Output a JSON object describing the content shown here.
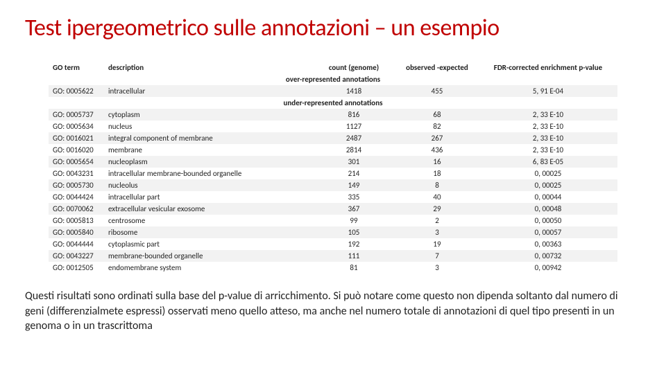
{
  "title": "Test ipergeometrico sulle annotazioni – un esempio",
  "table": {
    "headers": {
      "go_term": "GO term",
      "description": "description",
      "count": "count (genome)",
      "obs_exp": "observed -expected",
      "fdr": "FDR-corrected enrichment p-value"
    },
    "over_label": "over-represented annotations",
    "under_label": "under-represented annotations",
    "over_rows": [
      {
        "go": "GO: 0005622",
        "desc": "intracellular",
        "count": "1418",
        "oe": "455",
        "fdr": "5, 91 E-04"
      }
    ],
    "under_rows": [
      {
        "go": "GO: 0005737",
        "desc": "cytoplasm",
        "count": "816",
        "oe": "68",
        "fdr": "2, 33 E-10"
      },
      {
        "go": "GO: 0005634",
        "desc": "nucleus",
        "count": "1127",
        "oe": "82",
        "fdr": "2, 33 E-10"
      },
      {
        "go": "GO: 0016021",
        "desc": "integral component of membrane",
        "count": "2487",
        "oe": "267",
        "fdr": "2, 33 E-10"
      },
      {
        "go": "GO: 0016020",
        "desc": "membrane",
        "count": "2814",
        "oe": "436",
        "fdr": "2, 33 E-10"
      },
      {
        "go": "GO: 0005654",
        "desc": "nucleoplasm",
        "count": "301",
        "oe": "16",
        "fdr": "6, 83 E-05"
      },
      {
        "go": "GO: 0043231",
        "desc": "intracellular membrane-bounded organelle",
        "count": "214",
        "oe": "18",
        "fdr": "0, 00025"
      },
      {
        "go": "GO: 0005730",
        "desc": "nucleolus",
        "count": "149",
        "oe": "8",
        "fdr": "0, 00025"
      },
      {
        "go": "GO: 0044424",
        "desc": "intracellular part",
        "count": "335",
        "oe": "40",
        "fdr": "0, 00044"
      },
      {
        "go": "GO: 0070062",
        "desc": "extracellular vesicular exosome",
        "count": "367",
        "oe": "29",
        "fdr": "0, 00048"
      },
      {
        "go": "GO: 0005813",
        "desc": "centrosome",
        "count": "99",
        "oe": "2",
        "fdr": "0, 00050"
      },
      {
        "go": "GO: 0005840",
        "desc": "ribosome",
        "count": "105",
        "oe": "3",
        "fdr": "0, 00057"
      },
      {
        "go": "GO: 0044444",
        "desc": "cytoplasmic part",
        "count": "192",
        "oe": "19",
        "fdr": "0, 00363"
      },
      {
        "go": "GO: 0043227",
        "desc": "membrane-bounded organelle",
        "count": "111",
        "oe": "7",
        "fdr": "0, 00732"
      },
      {
        "go": "GO: 0012505",
        "desc": "endomembrane system",
        "count": "81",
        "oe": "3",
        "fdr": "0, 00942"
      }
    ]
  },
  "caption": "Questi risultati sono ordinati sulla base del p-value di arricchimento. Si può notare come questo non dipenda soltanto dal numero di geni (differenzialmete espressi) osservati meno quello atteso, ma anche nel numero totale di annotazioni di quel tipo presenti in un genoma o in un trascrittoma",
  "colors": {
    "title": "#c00000",
    "row_alt": "#f2f2f2",
    "bg": "#ffffff",
    "text": "#222222"
  }
}
